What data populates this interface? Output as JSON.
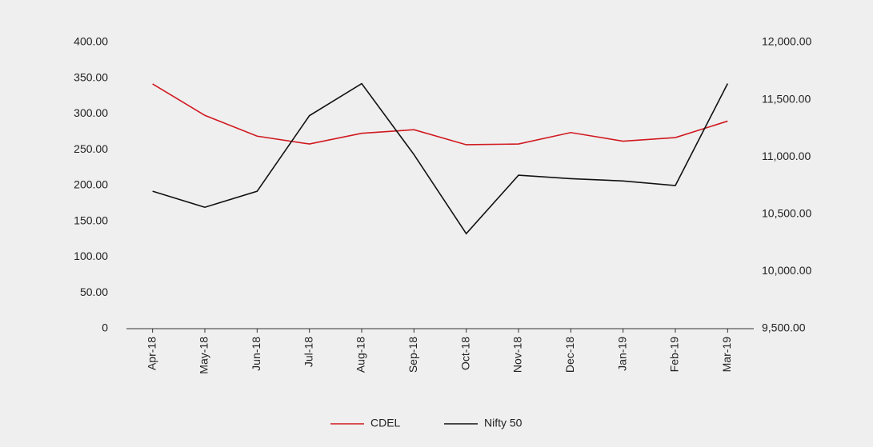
{
  "chart_data": {
    "type": "line",
    "categories": [
      "Apr-18",
      "May-18",
      "Jun-18",
      "Jul-18",
      "Aug-18",
      "Sep-18",
      "Oct-18",
      "Nov-18",
      "Dec-18",
      "Jan-19",
      "Feb-19",
      "Mar-19"
    ],
    "series": [
      {
        "name": "CDEL",
        "color": "#d0191f",
        "values": [
          342,
          298,
          269,
          258,
          273,
          278,
          257,
          258,
          274,
          262,
          267,
          290
        ]
      },
      {
        "name": "Nifty 50",
        "color": "#111111",
        "axis": "y2",
        "values": [
          10700,
          10560,
          10700,
          11360,
          11640,
          11020,
          10330,
          10840,
          10810,
          10790,
          10750,
          11640
        ]
      }
    ],
    "ylim": [
      0,
      400
    ],
    "yticks": [
      0,
      {
        "value": 50,
        "label": "50.00"
      },
      {
        "value": 100,
        "label": "100.00"
      },
      {
        "value": 150,
        "label": "150.00"
      },
      {
        "value": 200,
        "label": "200.00"
      },
      {
        "value": 250,
        "label": "250.00"
      },
      {
        "value": 300,
        "label": "300.00"
      },
      {
        "value": 350,
        "label": "350.00"
      },
      {
        "value": 400,
        "label": "400.00"
      }
    ],
    "y2lim": [
      9500,
      12000
    ],
    "y2ticks": [
      {
        "value": 9500,
        "label": "9,500.00"
      },
      {
        "value": 10000,
        "label": "10,000.00"
      },
      {
        "value": 10500,
        "label": "10,500.00"
      },
      {
        "value": 11000,
        "label": "11,000.00"
      },
      {
        "value": 11500,
        "label": "11,500.00"
      },
      {
        "value": 12000,
        "label": "12,000.00"
      }
    ],
    "grid": false,
    "legend": "bottom"
  }
}
